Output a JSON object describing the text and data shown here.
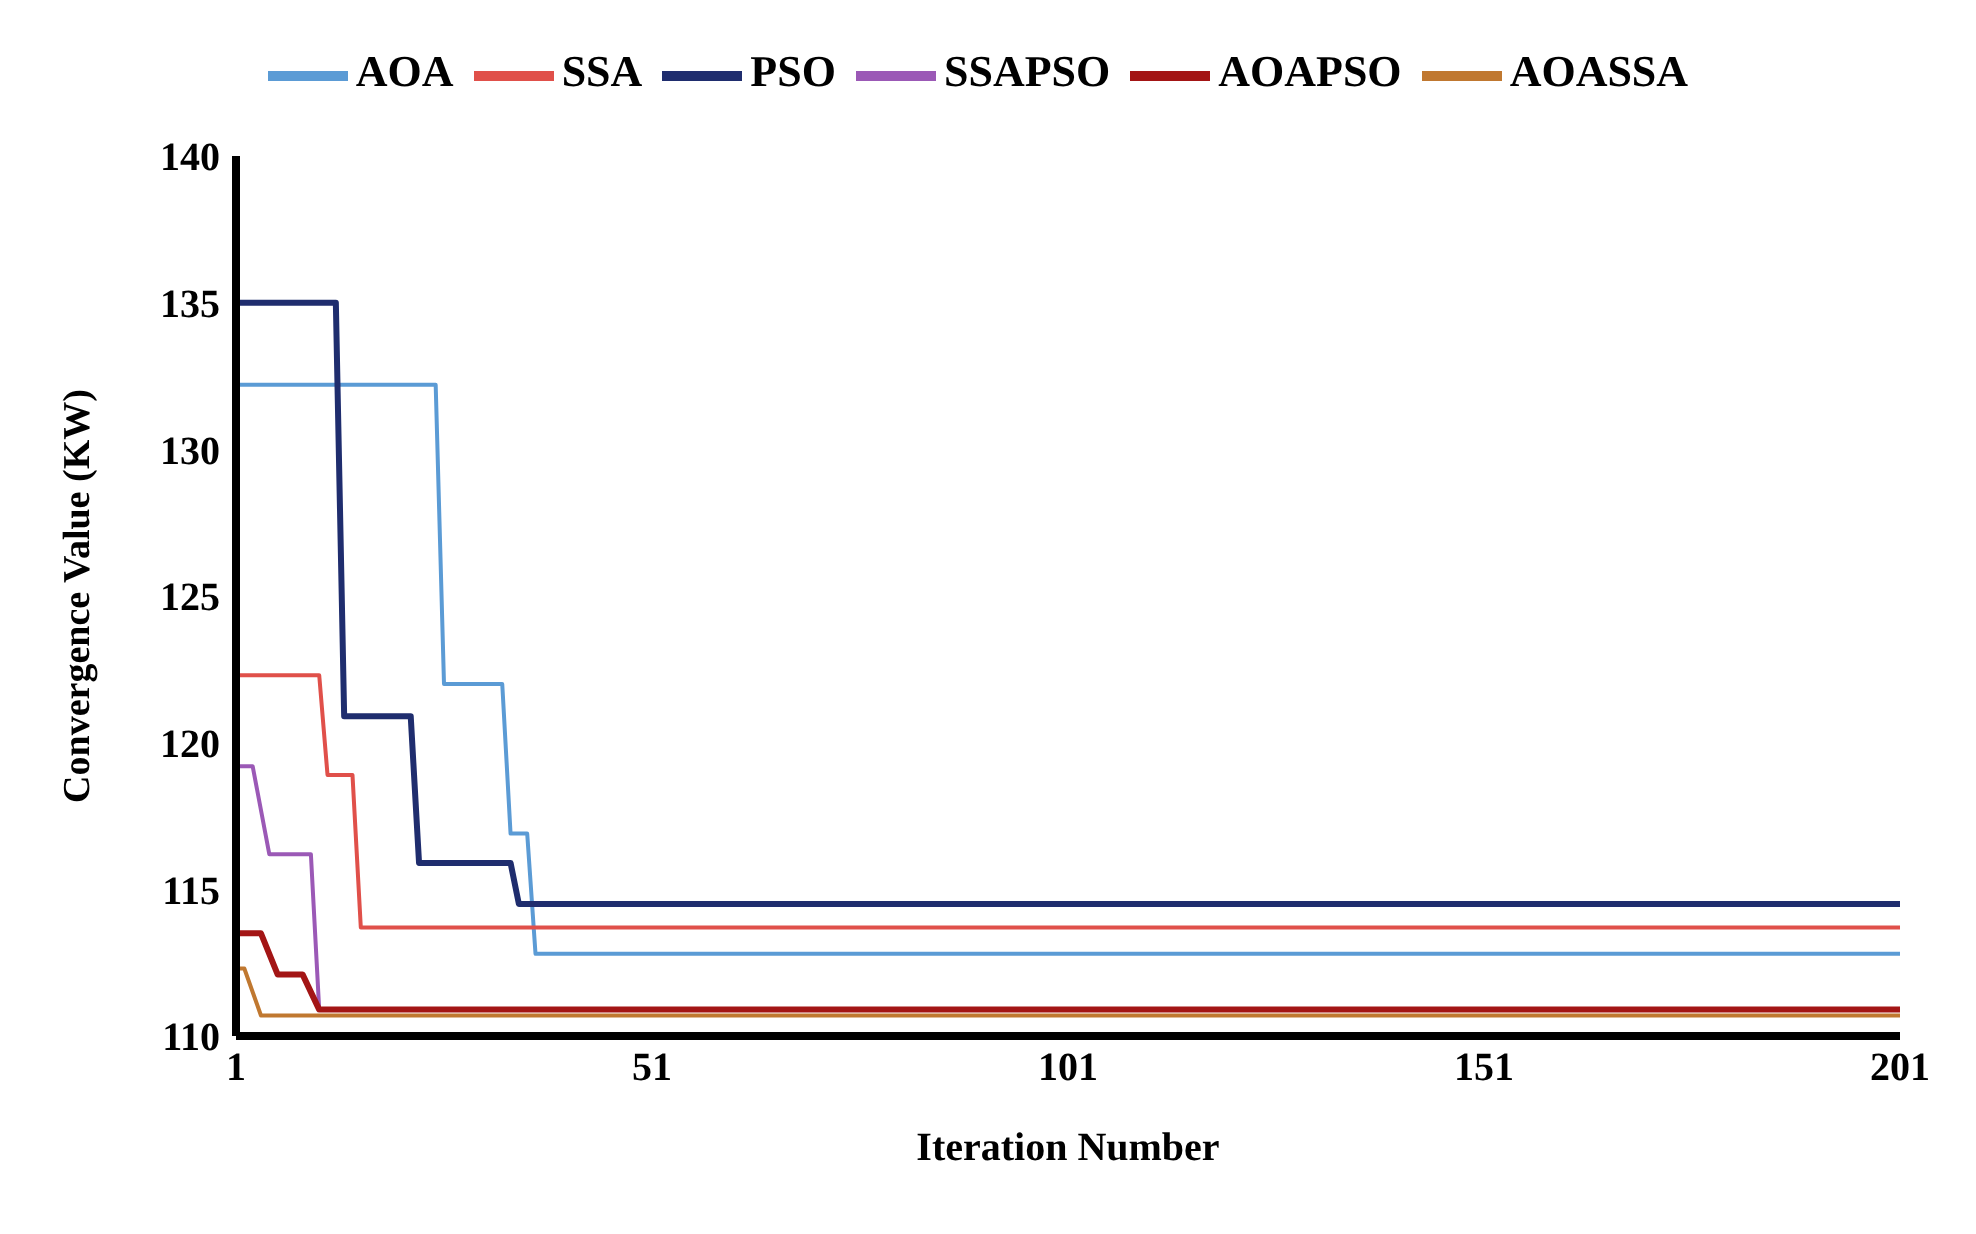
{
  "chart_data": {
    "type": "line",
    "xlabel": "Iteration Number",
    "ylabel": "Convergence Value (KW)",
    "xlim": [
      1,
      201
    ],
    "xticks": [
      1,
      51,
      101,
      151,
      201
    ],
    "ylim": [
      110,
      140
    ],
    "yticks": [
      110,
      115,
      120,
      125,
      130,
      135,
      140
    ],
    "grid": false,
    "legend": "top",
    "marker": "none",
    "line_style": "solid",
    "series": [
      {
        "name": "AOA",
        "color": "#5b9bd5",
        "x": [
          1,
          25,
          26,
          33,
          34,
          36,
          37,
          201
        ],
        "values": [
          132.2,
          132.2,
          122.0,
          122.0,
          116.9,
          116.9,
          112.8,
          112.8
        ]
      },
      {
        "name": "SSA",
        "color": "#e0504a",
        "x": [
          1,
          11,
          12,
          15,
          16,
          201
        ],
        "values": [
          122.3,
          122.3,
          118.9,
          118.9,
          113.7,
          113.7
        ]
      },
      {
        "name": "PSO",
        "color": "#1f2d6e",
        "x": [
          1,
          13,
          14,
          22,
          23,
          34,
          35,
          201
        ],
        "values": [
          135.0,
          135.0,
          120.9,
          120.9,
          115.9,
          115.9,
          114.5,
          114.5
        ]
      },
      {
        "name": "SSAPSO",
        "color": "#9b59b6",
        "x": [
          1,
          3,
          5,
          10,
          11,
          201
        ],
        "values": [
          119.2,
          119.2,
          116.2,
          116.2,
          110.9,
          110.9
        ]
      },
      {
        "name": "AOAPSO",
        "color": "#a31515",
        "x": [
          1,
          4,
          6,
          9,
          11,
          201
        ],
        "values": [
          113.5,
          113.5,
          112.1,
          112.1,
          110.9,
          110.9
        ]
      },
      {
        "name": "AOASSA",
        "color": "#c07830",
        "x": [
          1,
          2,
          4,
          201
        ],
        "values": [
          112.3,
          112.3,
          110.7,
          110.7
        ]
      }
    ]
  }
}
